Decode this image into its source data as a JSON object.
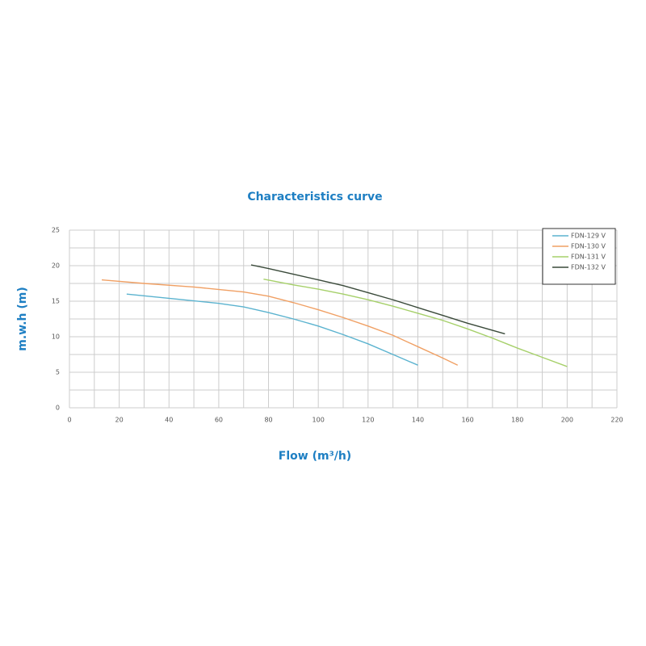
{
  "chart_data": {
    "type": "line",
    "title": "Characteristics curve",
    "x_label": "Flow (m³/h)",
    "y_label": "m.w.h (m)",
    "xlim": [
      0,
      220
    ],
    "ylim": [
      0,
      25
    ],
    "xticks": [
      0,
      20,
      40,
      60,
      80,
      100,
      120,
      140,
      160,
      180,
      200,
      220
    ],
    "yticks": [
      0,
      5,
      10,
      15,
      20,
      25
    ],
    "xgrid": [
      0,
      10,
      20,
      30,
      40,
      50,
      60,
      70,
      80,
      90,
      100,
      110,
      120,
      130,
      140,
      150,
      160,
      170,
      180,
      190,
      200,
      210,
      220
    ],
    "ygrid": [
      0,
      2.5,
      5,
      7.5,
      10,
      12.5,
      15,
      17.5,
      20,
      22.5,
      25
    ],
    "grid": true,
    "legend": "upper right",
    "series": [
      {
        "name": "FDN-129 V",
        "color": "#5bb3cf",
        "x": [
          23,
          40,
          60,
          70,
          80,
          90,
          100,
          110,
          120,
          130,
          140
        ],
        "values": [
          16,
          15.4,
          14.7,
          14.2,
          13.4,
          12.5,
          11.5,
          10.3,
          9,
          7.5,
          6
        ]
      },
      {
        "name": "FDN-130 V",
        "color": "#f0a064",
        "x": [
          13,
          30,
          50,
          70,
          80,
          90,
          100,
          110,
          120,
          130,
          140,
          150,
          156
        ],
        "values": [
          18,
          17.5,
          17,
          16.3,
          15.7,
          14.8,
          13.8,
          12.7,
          11.5,
          10.2,
          8.6,
          7,
          6
        ]
      },
      {
        "name": "FDN-131 V",
        "color": "#a6d06a",
        "x": [
          78,
          90,
          100,
          110,
          120,
          130,
          140,
          150,
          160,
          170,
          180,
          190,
          200
        ],
        "values": [
          18.1,
          17.3,
          16.7,
          16,
          15.2,
          14.3,
          13.3,
          12.3,
          11.1,
          9.8,
          8.4,
          7.1,
          5.8
        ]
      },
      {
        "name": "FDN-132 V",
        "color": "#3a4a3a",
        "x": [
          73,
          80,
          90,
          100,
          110,
          120,
          130,
          140,
          150,
          160,
          170,
          175
        ],
        "values": [
          20.1,
          19.6,
          18.8,
          18,
          17.2,
          16.2,
          15.2,
          14.1,
          13,
          11.9,
          10.9,
          10.4
        ]
      }
    ]
  }
}
